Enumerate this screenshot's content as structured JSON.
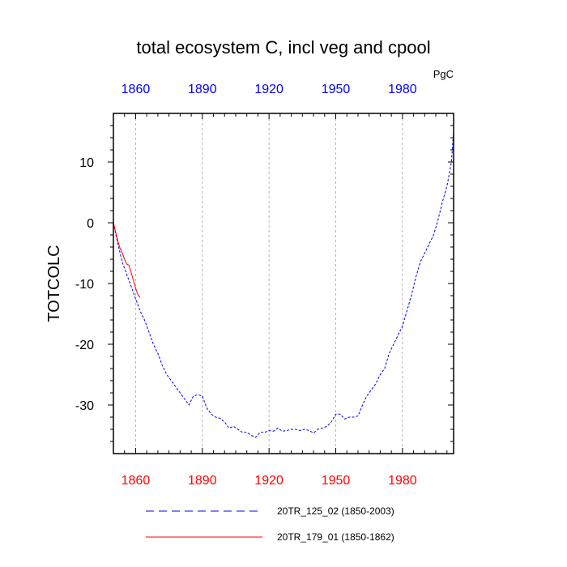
{
  "chart_data": {
    "type": "line",
    "title": "total ecosystem C, incl veg and cpool",
    "units": "PgC",
    "ylabel": "TOTCOLC",
    "xlabel": "",
    "xlim": [
      1850,
      2003
    ],
    "ylim": [
      -38,
      18
    ],
    "x_ticks": [
      1860,
      1890,
      1920,
      1950,
      1980
    ],
    "y_ticks": [
      10,
      0,
      -10,
      -20,
      -30
    ],
    "grid": "vertical dashed at x ticks",
    "colors": {
      "bottom_ticks": "#ff0000",
      "top_ticks": "#0000ff"
    },
    "series": [
      {
        "name": "20TR_125_02 (1850-2003)",
        "color": "#0000ff",
        "style": "dashed",
        "x": [
          1850,
          1852,
          1854,
          1856,
          1858,
          1860,
          1862,
          1864,
          1866,
          1868,
          1870,
          1872,
          1874,
          1876,
          1878,
          1880,
          1882,
          1884,
          1886,
          1888,
          1890,
          1892,
          1894,
          1896,
          1898,
          1900,
          1902,
          1904,
          1906,
          1908,
          1910,
          1912,
          1914,
          1916,
          1918,
          1920,
          1922,
          1924,
          1926,
          1928,
          1930,
          1932,
          1934,
          1936,
          1938,
          1940,
          1942,
          1944,
          1946,
          1948,
          1950,
          1952,
          1954,
          1956,
          1958,
          1960,
          1962,
          1964,
          1966,
          1968,
          1970,
          1972,
          1974,
          1976,
          1978,
          1980,
          1982,
          1984,
          1986,
          1988,
          1990,
          1992,
          1994,
          1996,
          1998,
          2000,
          2002,
          2003
        ],
        "y": [
          0,
          -3.5,
          -6.5,
          -8.5,
          -10.5,
          -12.5,
          -14.5,
          -16,
          -18,
          -20,
          -21.5,
          -23.5,
          -25,
          -26,
          -27,
          -28,
          -29,
          -30,
          -28.5,
          -28.3,
          -28.5,
          -30.5,
          -31.5,
          -32,
          -32.2,
          -32.8,
          -33.8,
          -33.5,
          -34,
          -34.5,
          -34.5,
          -35,
          -35.3,
          -34.5,
          -34.5,
          -34.2,
          -34.3,
          -33.8,
          -34.3,
          -34.2,
          -34,
          -34,
          -34.2,
          -34,
          -34.2,
          -34.6,
          -34,
          -33.8,
          -33.5,
          -32.8,
          -31.5,
          -31.5,
          -32.3,
          -32,
          -32,
          -31.8,
          -30,
          -28.5,
          -27.5,
          -26.5,
          -25,
          -24,
          -21.5,
          -20,
          -18.5,
          -17,
          -14.5,
          -12,
          -9,
          -6.5,
          -5,
          -3.5,
          -2,
          0.5,
          3.5,
          6,
          10,
          15
        ]
      },
      {
        "name": "20TR_179_01 (1850-1862)",
        "color": "#ff0000",
        "style": "solid",
        "x": [
          1850,
          1851,
          1852,
          1853,
          1854,
          1855,
          1856,
          1857,
          1858,
          1859,
          1860,
          1861,
          1862
        ],
        "y": [
          0,
          -1.5,
          -3,
          -4.2,
          -5,
          -6,
          -6.8,
          -7,
          -8.2,
          -9.5,
          -10.8,
          -11.8,
          -12.3
        ]
      }
    ]
  }
}
